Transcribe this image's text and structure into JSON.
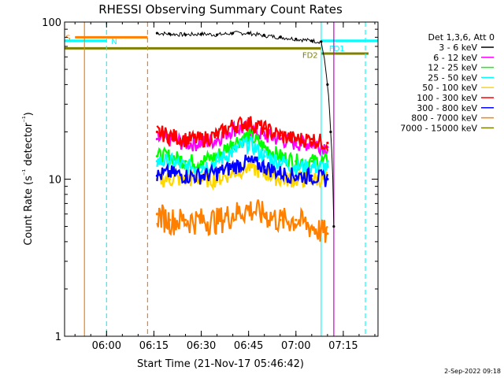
{
  "title": "RHESSI Observing Summary Count Rates",
  "colors": {
    "background": "#ffffff",
    "axis": "#000000",
    "flag_s": "#ff7f00",
    "flag_n": "#00ffff",
    "flag_fd": "#808000",
    "marker_orange": "#ff7f00",
    "marker_cyan": "#00ffff",
    "marker_magenta": "#cc00cc"
  },
  "chart_data": {
    "type": "line",
    "title": "RHESSI Observing Summary Count Rates",
    "xlabel": "Start Time (21-Nov-17 05:46:42)",
    "ylabel": "Count Rate (s⁻¹ detector⁻¹)",
    "ylog": true,
    "xlim": [
      "05:46:42",
      "07:26:00"
    ],
    "ylim": [
      1,
      100
    ],
    "x_ticks": [
      "06:00",
      "06:15",
      "06:30",
      "06:45",
      "07:00",
      "07:15"
    ],
    "y_ticks": [
      1,
      10,
      100
    ],
    "legend_title": "Det 1,3,6, Att 0",
    "legend_position": "right",
    "series": [
      {
        "name": "3 - 6 keV",
        "color": "#000000",
        "x": [
          "06:16",
          "06:20",
          "06:25",
          "06:30",
          "06:35",
          "06:40",
          "06:45",
          "06:50",
          "06:55",
          "07:00",
          "07:05",
          "07:08",
          "07:10",
          "07:11",
          "07:12"
        ],
        "y": [
          85,
          84,
          83,
          84,
          83,
          85,
          85,
          82,
          80,
          78,
          76,
          75,
          40,
          20,
          5
        ]
      },
      {
        "name": "6 - 12 keV",
        "color": "#ff00ff",
        "x": [
          "06:16",
          "06:20",
          "06:25",
          "06:30",
          "06:35",
          "06:40",
          "06:45",
          "06:50",
          "06:55",
          "07:00",
          "07:05",
          "07:10"
        ],
        "y": [
          18,
          18,
          17,
          17,
          18,
          21,
          21,
          19,
          18,
          17,
          17,
          16
        ]
      },
      {
        "name": "12 - 25 keV",
        "color": "#00ff00",
        "x": [
          "06:16",
          "06:20",
          "06:25",
          "06:30",
          "06:35",
          "06:40",
          "06:45",
          "06:50",
          "06:55",
          "07:00",
          "07:05",
          "07:10"
        ],
        "y": [
          14,
          14,
          13,
          13,
          14,
          17,
          19,
          16,
          14,
          13,
          13,
          13
        ]
      },
      {
        "name": "25 - 50 keV",
        "color": "#00ffff",
        "x": [
          "06:16",
          "06:20",
          "06:25",
          "06:30",
          "06:35",
          "06:40",
          "06:45",
          "06:50",
          "06:55",
          "07:00",
          "07:05",
          "07:10"
        ],
        "y": [
          13,
          13,
          12,
          12,
          13,
          15,
          17,
          14,
          13,
          12,
          12,
          12
        ]
      },
      {
        "name": "50 - 100 keV",
        "color": "#ffd700",
        "x": [
          "06:16",
          "06:20",
          "06:25",
          "06:30",
          "06:35",
          "06:40",
          "06:45",
          "06:50",
          "06:55",
          "07:00",
          "07:05",
          "07:10"
        ],
        "y": [
          10,
          10,
          10,
          10,
          10,
          11,
          12,
          11,
          10,
          10,
          10,
          10
        ]
      },
      {
        "name": "100 - 300 keV",
        "color": "#ff0000",
        "x": [
          "06:16",
          "06:20",
          "06:25",
          "06:30",
          "06:35",
          "06:40",
          "06:45",
          "06:50",
          "06:55",
          "07:00",
          "07:05",
          "07:10"
        ],
        "y": [
          20,
          19,
          18,
          18,
          19,
          22,
          23,
          21,
          19,
          18,
          18,
          17
        ]
      },
      {
        "name": "300 - 800 keV",
        "color": "#0000ff",
        "x": [
          "06:16",
          "06:20",
          "06:25",
          "06:30",
          "06:35",
          "06:40",
          "06:45",
          "06:50",
          "06:55",
          "07:00",
          "07:05",
          "07:10"
        ],
        "y": [
          10.5,
          11,
          10.5,
          10.5,
          11,
          12,
          13,
          12,
          11,
          10.5,
          10.5,
          10
        ]
      },
      {
        "name": "800 - 7000 keV",
        "color": "#ff7f00",
        "x": [
          "06:16",
          "06:20",
          "06:25",
          "06:30",
          "06:35",
          "06:40",
          "06:45",
          "06:50",
          "06:55",
          "07:00",
          "07:05",
          "07:10"
        ],
        "y": [
          6,
          5.5,
          5.5,
          5.5,
          5.5,
          6,
          6.5,
          6,
          5.5,
          5.5,
          5,
          4.5
        ]
      },
      {
        "name": "7000 - 15000 keV",
        "color": "#808000",
        "x": [],
        "y": []
      }
    ],
    "flags": [
      {
        "label": "S",
        "color": "#ff7f00",
        "x_start": "05:50",
        "x_end": "06:13",
        "y": 80
      },
      {
        "label": "N",
        "color": "#00ffff",
        "x_start": "05:46:42",
        "x_end": "06:00",
        "y": 76
      },
      {
        "label": "FD1",
        "color": "#00ffff",
        "x_start": "07:08",
        "x_end": "07:26",
        "y": 76
      },
      {
        "label": "FD2",
        "color": "#808000",
        "x_start": "05:46:42",
        "x_end": "07:08",
        "y": 68
      },
      {
        "label": "",
        "color": "#808000",
        "x_start": "07:08",
        "x_end": "07:23",
        "y": 63
      }
    ],
    "vlines": [
      {
        "x": "05:53",
        "color": "#ff7f00",
        "style": "solid"
      },
      {
        "x": "06:13",
        "color": "#ff7f00",
        "style": "dashed"
      },
      {
        "x": "06:00",
        "color": "#00ffff",
        "style": "dashed"
      },
      {
        "x": "07:08",
        "color": "#00ffff",
        "style": "solid"
      },
      {
        "x": "07:22",
        "color": "#00ffff",
        "style": "dashed"
      },
      {
        "x": "07:12",
        "color": "#cc00cc",
        "style": "solid"
      }
    ]
  },
  "footer_timestamp": "2-Sep-2022 09:18"
}
